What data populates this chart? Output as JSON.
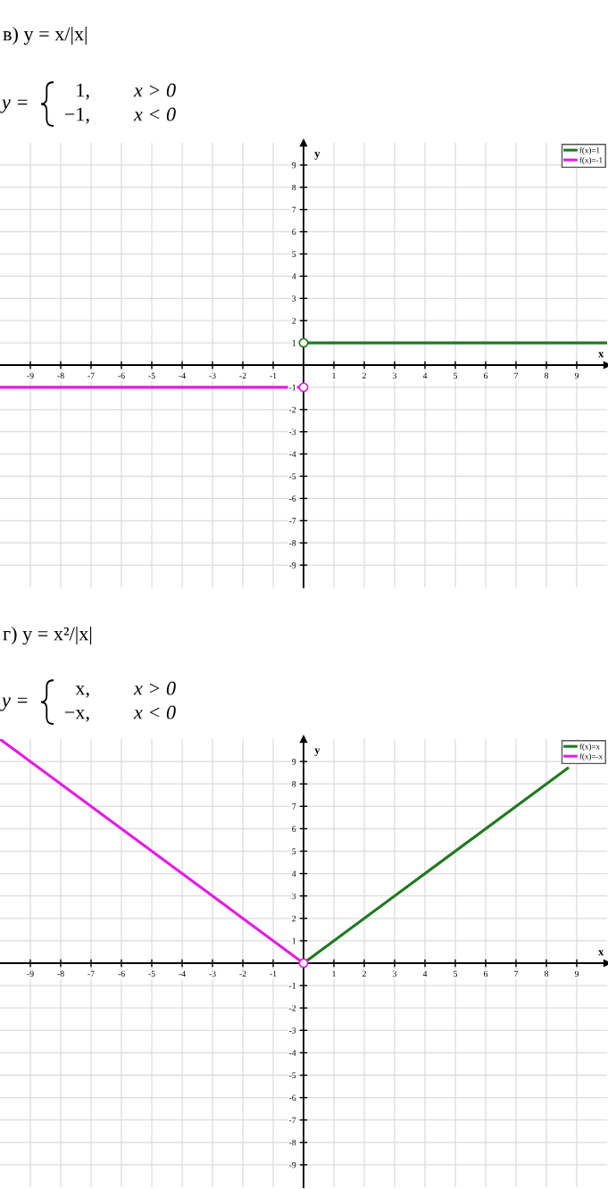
{
  "chart_data": [
    {
      "type": "line",
      "title": "в) y = x/|x|",
      "annotations": [
        "y =",
        "1,",
        "x > 0",
        "−1,",
        "x < 0"
      ],
      "xlabel": "x",
      "ylabel": "y",
      "xlim": [
        -10,
        10
      ],
      "ylim": [
        -10,
        10
      ],
      "xticks": [
        -9,
        -8,
        -7,
        -6,
        -5,
        -4,
        -3,
        -2,
        -1,
        1,
        2,
        3,
        4,
        5,
        6,
        7,
        8,
        9
      ],
      "yticks": [
        -9,
        -8,
        -7,
        -6,
        -5,
        -4,
        -3,
        -2,
        -1,
        1,
        2,
        3,
        4,
        5,
        6,
        7,
        8,
        9
      ],
      "grid": true,
      "legend": "top right",
      "line_style": "solid",
      "series": [
        {
          "name": "f(x)=1",
          "color": "#1f7a1f",
          "x": [
            0,
            10
          ],
          "values": [
            1,
            1
          ]
        },
        {
          "name": "f(x)=-1",
          "color": "#e31ce3",
          "x": [
            -10,
            0
          ],
          "values": [
            -1,
            -1
          ]
        },
        {
          "type": "scatter",
          "marker": "circle",
          "color": "#1f7a1f",
          "x": [
            0
          ],
          "values": [
            1
          ]
        },
        {
          "type": "scatter",
          "marker": "circle",
          "color": "#e31ce3",
          "x": [
            0
          ],
          "values": [
            -1
          ]
        }
      ]
    },
    {
      "type": "line",
      "title": "г) y = x²/|x|",
      "annotations": [
        "y =",
        "x,",
        "x > 0",
        "−x,",
        "x < 0"
      ],
      "xlabel": "x",
      "ylabel": "y",
      "xlim": [
        -10,
        10
      ],
      "ylim": [
        -10,
        10
      ],
      "xticks": [
        -9,
        -8,
        -7,
        -6,
        -5,
        -4,
        -3,
        -2,
        -1,
        1,
        2,
        3,
        4,
        5,
        6,
        7,
        8,
        9
      ],
      "yticks": [
        -9,
        -8,
        -7,
        -6,
        -5,
        -4,
        -3,
        -2,
        -1,
        1,
        2,
        3,
        4,
        5,
        6,
        7,
        8,
        9
      ],
      "grid": true,
      "legend": "top right",
      "line_style": "solid",
      "series": [
        {
          "name": "f(x)=x",
          "color": "#1f7a1f",
          "x": [
            0,
            8.7
          ],
          "values": [
            0,
            8.7
          ]
        },
        {
          "name": "f(x)=-x",
          "color": "#e31ce3",
          "x": [
            -10,
            0
          ],
          "values": [
            10,
            0
          ]
        },
        {
          "type": "scatter",
          "marker": "circle",
          "color": "#e31ce3",
          "x": [
            0
          ],
          "values": [
            0
          ]
        }
      ]
    }
  ]
}
